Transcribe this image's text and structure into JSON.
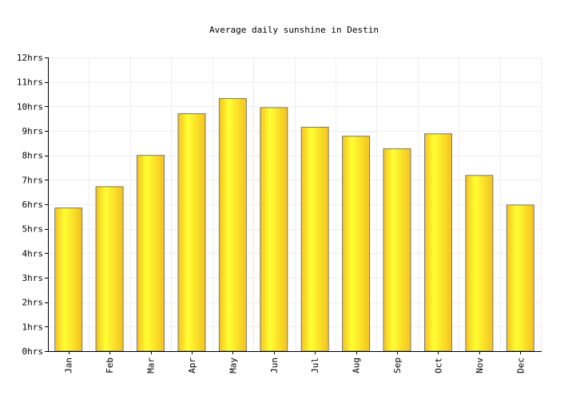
{
  "chart_data": {
    "type": "bar",
    "title": "Average daily sunshine in Destin",
    "xlabel": "",
    "ylabel": "",
    "categories": [
      "Jan",
      "Feb",
      "Mar",
      "Apr",
      "May",
      "Jun",
      "Jul",
      "Aug",
      "Sep",
      "Oct",
      "Nov",
      "Dec"
    ],
    "values": [
      5.85,
      6.72,
      8.0,
      9.7,
      10.32,
      9.95,
      9.15,
      8.78,
      8.27,
      8.88,
      7.18,
      5.97
    ],
    "ylim": [
      0,
      12
    ],
    "y_ticks": [
      "0hrs",
      "1hrs",
      "2hrs",
      "3hrs",
      "4hrs",
      "5hrs",
      "6hrs",
      "7hrs",
      "8hrs",
      "9hrs",
      "10hrs",
      "11hrs",
      "12hrs"
    ],
    "grid": true,
    "legend": "none",
    "colors": {
      "bar_light": "#ffff33",
      "bar_dark": "#f5c21e",
      "bar_stroke": "#777777",
      "grid": "#eeeeee",
      "axis": "#000000"
    }
  }
}
